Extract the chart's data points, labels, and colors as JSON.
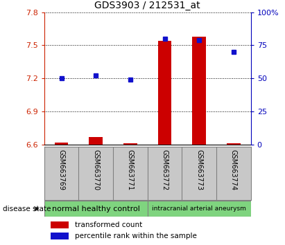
{
  "title": "GDS3903 / 212531_at",
  "samples": [
    "GSM663769",
    "GSM663770",
    "GSM663771",
    "GSM663772",
    "GSM663773",
    "GSM663774"
  ],
  "transformed_count": [
    6.62,
    6.67,
    6.61,
    7.54,
    7.58,
    6.61
  ],
  "percentile_rank": [
    50,
    52,
    49,
    80,
    79,
    70
  ],
  "ylim_left": [
    6.6,
    7.8
  ],
  "ylim_right": [
    0,
    100
  ],
  "yticks_left": [
    6.6,
    6.9,
    7.2,
    7.5,
    7.8
  ],
  "yticks_right": [
    0,
    25,
    50,
    75,
    100
  ],
  "groups": [
    {
      "label": "normal healthy control",
      "span": [
        0,
        3
      ]
    },
    {
      "label": "intracranial arterial aneurysm",
      "span": [
        3,
        6
      ]
    }
  ],
  "bar_color": "#CC0000",
  "dot_color": "#1111CC",
  "bg_color": "#C8C8C8",
  "group_color": "#7FD47F",
  "left_axis_color": "#CC2200",
  "right_axis_color": "#0000BB",
  "base_value": 6.6,
  "bar_width": 0.4
}
